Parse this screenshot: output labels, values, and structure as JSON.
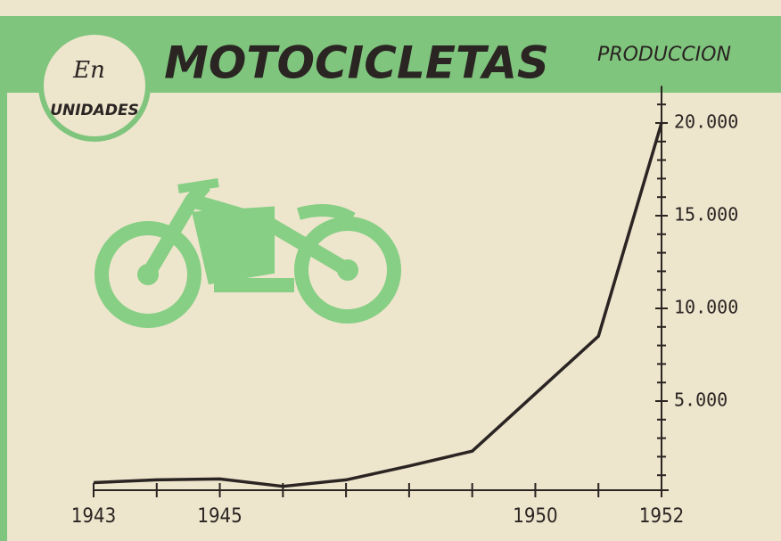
{
  "chart_data": {
    "type": "line",
    "title": "MOTOCICLETAS",
    "subtitle": "PRODUCCION",
    "unit_label": [
      "En",
      "UNIDADES"
    ],
    "x": [
      1943,
      1944,
      1945,
      1946,
      1947,
      1948,
      1949,
      1950,
      1951,
      1952
    ],
    "values": [
      600,
      750,
      800,
      400,
      750,
      1500,
      2300,
      5400,
      8500,
      20000
    ],
    "color": "#2a2422",
    "xlim": [
      1943,
      1952
    ],
    "xticks": [
      1943,
      1945,
      1950,
      1952
    ],
    "xminorticks": [
      1944,
      1946,
      1947,
      1948,
      1949,
      1951
    ],
    "ylim": [
      0,
      22000
    ],
    "yticks": [
      {
        "value": 5000,
        "label": "5.000"
      },
      {
        "value": 10000,
        "label": "10.000"
      },
      {
        "value": 15000,
        "label": "15.000"
      },
      {
        "value": 20000,
        "label": "20.000"
      }
    ],
    "yminorticks": [
      1000,
      2000,
      3000,
      4000,
      6000,
      7000,
      8000,
      9000,
      11000,
      12000,
      13000,
      14000,
      16000,
      17000,
      18000,
      19000,
      21000
    ]
  }
}
